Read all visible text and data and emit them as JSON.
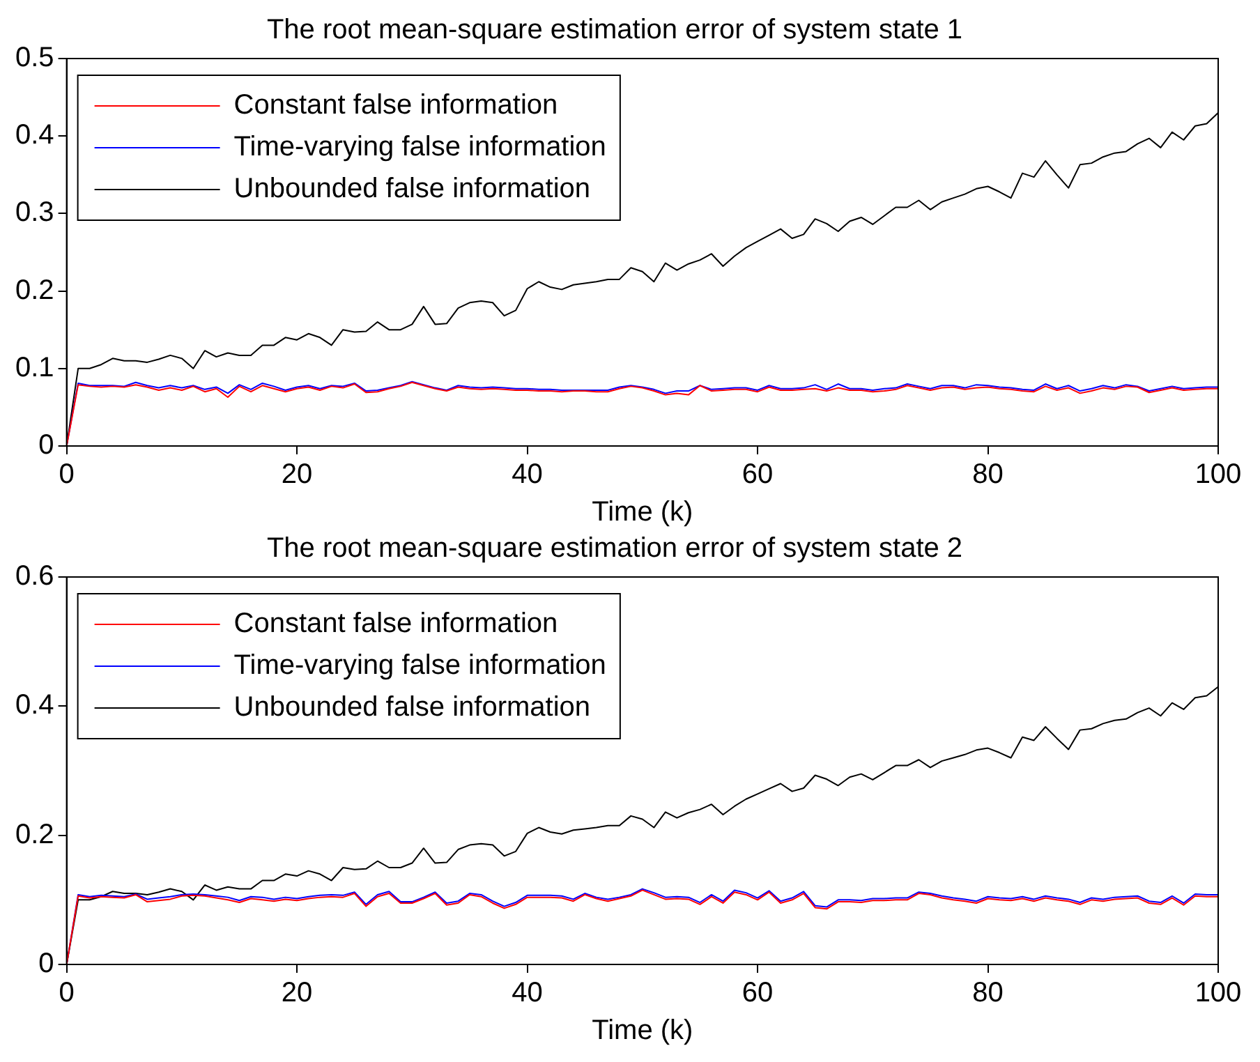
{
  "chart_data": [
    {
      "type": "line",
      "title": "The root mean-square estimation error of system state 1",
      "xlabel": "Time (k)",
      "x": [
        0,
        1,
        2,
        3,
        4,
        5,
        6,
        7,
        8,
        9,
        10,
        11,
        12,
        13,
        14,
        15,
        16,
        17,
        18,
        19,
        20,
        21,
        22,
        23,
        24,
        25,
        26,
        27,
        28,
        29,
        30,
        31,
        32,
        33,
        34,
        35,
        36,
        37,
        38,
        39,
        40,
        41,
        42,
        43,
        44,
        45,
        46,
        47,
        48,
        49,
        50,
        51,
        52,
        53,
        54,
        55,
        56,
        57,
        58,
        59,
        60,
        61,
        62,
        63,
        64,
        65,
        66,
        67,
        68,
        69,
        70,
        71,
        72,
        73,
        74,
        75,
        76,
        77,
        78,
        79,
        80,
        81,
        82,
        83,
        84,
        85,
        86,
        87,
        88,
        89,
        90,
        91,
        92,
        93,
        94,
        95,
        96,
        97,
        98,
        99,
        100
      ],
      "xlim": [
        0,
        100
      ],
      "xticks": [
        0,
        20,
        40,
        60,
        80,
        100
      ],
      "ylim": [
        0,
        0.5
      ],
      "yticks": [
        0,
        0.1,
        0.2,
        0.3,
        0.4,
        0.5
      ],
      "grid": false,
      "legend": "top left",
      "series": [
        {
          "name": "Constant false information",
          "color": "#ff0000",
          "values": [
            0,
            0.079,
            0.077,
            0.076,
            0.077,
            0.076,
            0.079,
            0.076,
            0.072,
            0.075,
            0.072,
            0.077,
            0.07,
            0.074,
            0.063,
            0.077,
            0.07,
            0.078,
            0.074,
            0.07,
            0.074,
            0.076,
            0.072,
            0.077,
            0.075,
            0.08,
            0.069,
            0.07,
            0.074,
            0.077,
            0.082,
            0.078,
            0.074,
            0.071,
            0.076,
            0.074,
            0.073,
            0.074,
            0.073,
            0.072,
            0.072,
            0.071,
            0.071,
            0.07,
            0.071,
            0.071,
            0.07,
            0.07,
            0.074,
            0.077,
            0.075,
            0.071,
            0.066,
            0.068,
            0.066,
            0.078,
            0.071,
            0.072,
            0.073,
            0.073,
            0.07,
            0.076,
            0.072,
            0.072,
            0.073,
            0.074,
            0.071,
            0.075,
            0.072,
            0.072,
            0.07,
            0.071,
            0.073,
            0.078,
            0.075,
            0.072,
            0.075,
            0.076,
            0.073,
            0.075,
            0.076,
            0.074,
            0.073,
            0.071,
            0.07,
            0.077,
            0.072,
            0.075,
            0.068,
            0.071,
            0.075,
            0.073,
            0.077,
            0.076,
            0.069,
            0.072,
            0.075,
            0.072,
            0.073,
            0.074,
            0.074
          ]
        },
        {
          "name": "Time-varying false information",
          "color": "#0000ff",
          "values": [
            0,
            0.081,
            0.078,
            0.078,
            0.078,
            0.077,
            0.082,
            0.078,
            0.075,
            0.078,
            0.075,
            0.078,
            0.073,
            0.076,
            0.068,
            0.079,
            0.073,
            0.081,
            0.077,
            0.072,
            0.076,
            0.078,
            0.074,
            0.078,
            0.077,
            0.081,
            0.071,
            0.072,
            0.075,
            0.078,
            0.083,
            0.079,
            0.075,
            0.072,
            0.078,
            0.076,
            0.075,
            0.076,
            0.075,
            0.074,
            0.074,
            0.073,
            0.073,
            0.072,
            0.072,
            0.072,
            0.072,
            0.072,
            0.076,
            0.078,
            0.076,
            0.073,
            0.068,
            0.071,
            0.071,
            0.078,
            0.073,
            0.074,
            0.075,
            0.075,
            0.072,
            0.078,
            0.074,
            0.074,
            0.075,
            0.079,
            0.073,
            0.08,
            0.074,
            0.074,
            0.072,
            0.074,
            0.075,
            0.08,
            0.077,
            0.074,
            0.078,
            0.078,
            0.075,
            0.079,
            0.078,
            0.076,
            0.075,
            0.073,
            0.072,
            0.08,
            0.074,
            0.078,
            0.071,
            0.074,
            0.078,
            0.075,
            0.079,
            0.077,
            0.071,
            0.074,
            0.077,
            0.074,
            0.075,
            0.076,
            0.076
          ]
        },
        {
          "name": "Unbounded false information",
          "color": "#000000",
          "values": [
            0,
            0.1,
            0.1,
            0.105,
            0.113,
            0.11,
            0.11,
            0.108,
            0.112,
            0.117,
            0.113,
            0.1,
            0.123,
            0.115,
            0.12,
            0.117,
            0.117,
            0.13,
            0.13,
            0.14,
            0.137,
            0.145,
            0.14,
            0.13,
            0.15,
            0.147,
            0.148,
            0.16,
            0.15,
            0.15,
            0.157,
            0.18,
            0.157,
            0.158,
            0.178,
            0.185,
            0.187,
            0.185,
            0.168,
            0.175,
            0.203,
            0.212,
            0.205,
            0.202,
            0.208,
            0.21,
            0.212,
            0.215,
            0.215,
            0.23,
            0.225,
            0.212,
            0.236,
            0.227,
            0.235,
            0.24,
            0.248,
            0.232,
            0.245,
            0.256,
            0.264,
            0.272,
            0.28,
            0.268,
            0.273,
            0.293,
            0.287,
            0.277,
            0.29,
            0.295,
            0.286,
            0.297,
            0.308,
            0.308,
            0.317,
            0.305,
            0.315,
            0.32,
            0.325,
            0.332,
            0.335,
            0.328,
            0.32,
            0.352,
            0.347,
            0.368,
            0.35,
            0.333,
            0.363,
            0.365,
            0.373,
            0.378,
            0.38,
            0.39,
            0.397,
            0.385,
            0.405,
            0.395,
            0.413,
            0.416,
            0.43
          ]
        }
      ]
    },
    {
      "type": "line",
      "title": "The root mean-square estimation error of system state 2",
      "xlabel": "Time (k)",
      "x": [
        0,
        1,
        2,
        3,
        4,
        5,
        6,
        7,
        8,
        9,
        10,
        11,
        12,
        13,
        14,
        15,
        16,
        17,
        18,
        19,
        20,
        21,
        22,
        23,
        24,
        25,
        26,
        27,
        28,
        29,
        30,
        31,
        32,
        33,
        34,
        35,
        36,
        37,
        38,
        39,
        40,
        41,
        42,
        43,
        44,
        45,
        46,
        47,
        48,
        49,
        50,
        51,
        52,
        53,
        54,
        55,
        56,
        57,
        58,
        59,
        60,
        61,
        62,
        63,
        64,
        65,
        66,
        67,
        68,
        69,
        70,
        71,
        72,
        73,
        74,
        75,
        76,
        77,
        78,
        79,
        80,
        81,
        82,
        83,
        84,
        85,
        86,
        87,
        88,
        89,
        90,
        91,
        92,
        93,
        94,
        95,
        96,
        97,
        98,
        99,
        100
      ],
      "xlim": [
        0,
        100
      ],
      "xticks": [
        0,
        20,
        40,
        60,
        80,
        100
      ],
      "ylim": [
        0,
        0.6
      ],
      "yticks": [
        0,
        0.2,
        0.4,
        0.6
      ],
      "grid": false,
      "legend": "top left",
      "series": [
        {
          "name": "Constant false information",
          "color": "#ff0000",
          "values": [
            0,
            0.106,
            0.103,
            0.105,
            0.104,
            0.103,
            0.108,
            0.097,
            0.099,
            0.101,
            0.106,
            0.107,
            0.106,
            0.103,
            0.1,
            0.096,
            0.102,
            0.1,
            0.098,
            0.101,
            0.099,
            0.102,
            0.104,
            0.105,
            0.104,
            0.11,
            0.09,
            0.105,
            0.11,
            0.095,
            0.095,
            0.102,
            0.11,
            0.092,
            0.095,
            0.108,
            0.105,
            0.095,
            0.087,
            0.093,
            0.104,
            0.104,
            0.104,
            0.103,
            0.098,
            0.108,
            0.102,
            0.098,
            0.102,
            0.106,
            0.115,
            0.108,
            0.101,
            0.102,
            0.101,
            0.093,
            0.105,
            0.095,
            0.112,
            0.108,
            0.1,
            0.112,
            0.095,
            0.1,
            0.11,
            0.088,
            0.086,
            0.097,
            0.097,
            0.096,
            0.099,
            0.099,
            0.1,
            0.1,
            0.11,
            0.108,
            0.103,
            0.1,
            0.098,
            0.095,
            0.102,
            0.1,
            0.099,
            0.102,
            0.098,
            0.103,
            0.1,
            0.098,
            0.093,
            0.1,
            0.098,
            0.101,
            0.102,
            0.103,
            0.095,
            0.093,
            0.103,
            0.092,
            0.106,
            0.105,
            0.105
          ]
        },
        {
          "name": "Time-varying false information",
          "color": "#0000ff",
          "values": [
            0,
            0.108,
            0.105,
            0.107,
            0.106,
            0.105,
            0.109,
            0.101,
            0.103,
            0.105,
            0.108,
            0.109,
            0.108,
            0.106,
            0.104,
            0.099,
            0.105,
            0.104,
            0.101,
            0.104,
            0.102,
            0.105,
            0.107,
            0.108,
            0.107,
            0.112,
            0.093,
            0.108,
            0.113,
            0.097,
            0.097,
            0.104,
            0.112,
            0.095,
            0.098,
            0.11,
            0.108,
            0.098,
            0.09,
            0.096,
            0.107,
            0.107,
            0.107,
            0.106,
            0.101,
            0.11,
            0.104,
            0.101,
            0.104,
            0.108,
            0.117,
            0.111,
            0.104,
            0.105,
            0.104,
            0.096,
            0.108,
            0.098,
            0.115,
            0.111,
            0.103,
            0.114,
            0.098,
            0.103,
            0.113,
            0.091,
            0.089,
            0.1,
            0.1,
            0.099,
            0.102,
            0.102,
            0.103,
            0.103,
            0.112,
            0.11,
            0.106,
            0.103,
            0.101,
            0.098,
            0.105,
            0.103,
            0.102,
            0.105,
            0.101,
            0.106,
            0.103,
            0.101,
            0.096,
            0.103,
            0.101,
            0.104,
            0.105,
            0.106,
            0.098,
            0.096,
            0.106,
            0.095,
            0.109,
            0.108,
            0.108
          ]
        },
        {
          "name": "Unbounded false information",
          "color": "#000000",
          "values": [
            0,
            0.1,
            0.1,
            0.105,
            0.113,
            0.11,
            0.11,
            0.108,
            0.112,
            0.117,
            0.113,
            0.1,
            0.123,
            0.115,
            0.12,
            0.117,
            0.117,
            0.13,
            0.13,
            0.14,
            0.137,
            0.145,
            0.14,
            0.13,
            0.15,
            0.147,
            0.148,
            0.16,
            0.15,
            0.15,
            0.157,
            0.18,
            0.157,
            0.158,
            0.178,
            0.185,
            0.187,
            0.185,
            0.168,
            0.175,
            0.203,
            0.212,
            0.205,
            0.202,
            0.208,
            0.21,
            0.212,
            0.215,
            0.215,
            0.23,
            0.225,
            0.212,
            0.236,
            0.227,
            0.235,
            0.24,
            0.248,
            0.232,
            0.245,
            0.256,
            0.264,
            0.272,
            0.28,
            0.268,
            0.273,
            0.293,
            0.287,
            0.277,
            0.29,
            0.295,
            0.286,
            0.297,
            0.308,
            0.308,
            0.317,
            0.305,
            0.315,
            0.32,
            0.325,
            0.332,
            0.335,
            0.328,
            0.32,
            0.352,
            0.347,
            0.368,
            0.35,
            0.333,
            0.363,
            0.365,
            0.373,
            0.378,
            0.38,
            0.39,
            0.397,
            0.385,
            0.405,
            0.395,
            0.413,
            0.416,
            0.43
          ]
        }
      ]
    }
  ]
}
